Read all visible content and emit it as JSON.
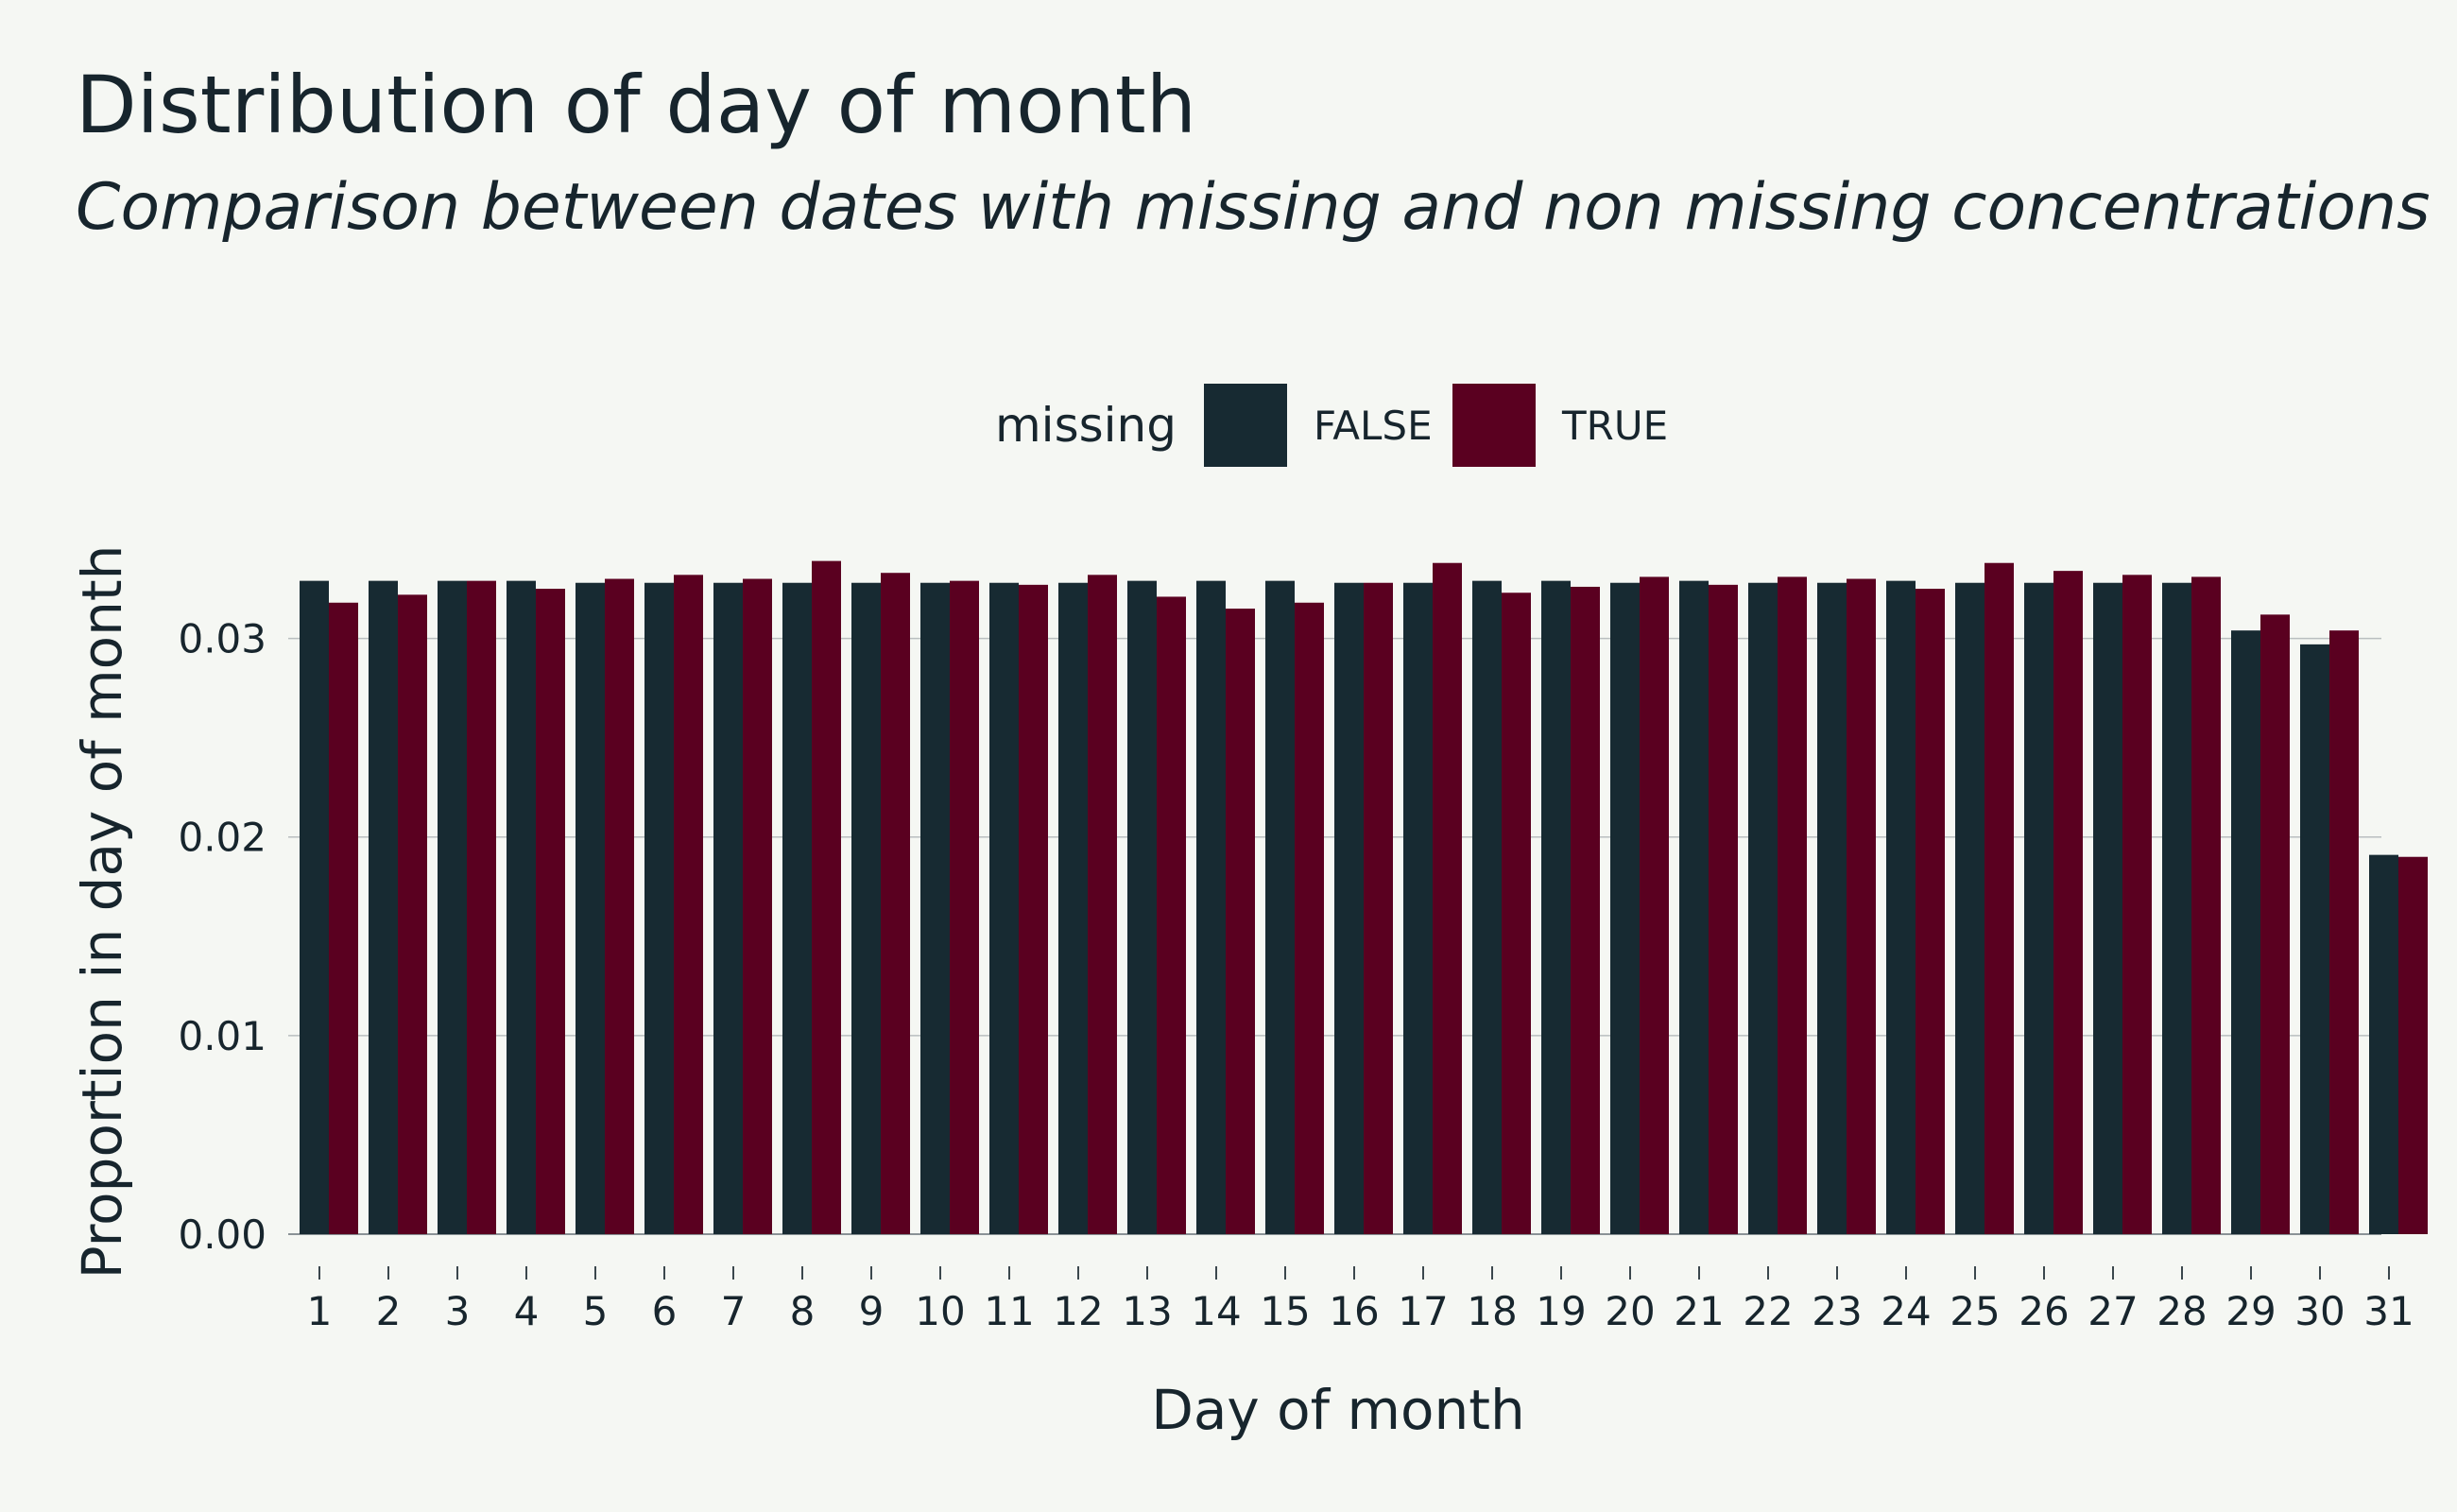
{
  "chart_data": {
    "type": "bar",
    "title": "Distribution of day of month",
    "subtitle": "Comparison between dates with missing and non missing concentrations",
    "xlabel": "Day of month",
    "ylabel": "Proportion in day of month",
    "ylim": [
      0,
      0.0355
    ],
    "yticks": [
      "0.00",
      "0.01",
      "0.02",
      "0.03"
    ],
    "ytick_values": [
      0,
      0.01,
      0.02,
      0.03
    ],
    "grid": "horizontal",
    "legend": {
      "title": "missing",
      "position": "top-center"
    },
    "categories": [
      "1",
      "2",
      "3",
      "4",
      "5",
      "6",
      "7",
      "8",
      "9",
      "10",
      "11",
      "12",
      "13",
      "14",
      "15",
      "16",
      "17",
      "18",
      "19",
      "20",
      "21",
      "22",
      "23",
      "24",
      "25",
      "26",
      "27",
      "28",
      "29",
      "30",
      "31"
    ],
    "series": [
      {
        "name": "FALSE",
        "color": "#172a32",
        "values": [
          0.0329,
          0.0329,
          0.0329,
          0.0329,
          0.0328,
          0.0328,
          0.0328,
          0.0328,
          0.0328,
          0.0328,
          0.0328,
          0.0328,
          0.0329,
          0.0329,
          0.0329,
          0.0328,
          0.0328,
          0.0329,
          0.0329,
          0.0328,
          0.0329,
          0.0328,
          0.0328,
          0.0329,
          0.0328,
          0.0328,
          0.0328,
          0.0328,
          0.0304,
          0.0297,
          0.0191
        ]
      },
      {
        "name": "TRUE",
        "color": "#5a0020",
        "values": [
          0.0318,
          0.0322,
          0.0329,
          0.0325,
          0.033,
          0.0332,
          0.033,
          0.0339,
          0.0333,
          0.0329,
          0.0327,
          0.0332,
          0.0321,
          0.0315,
          0.0318,
          0.0328,
          0.0338,
          0.0323,
          0.0326,
          0.0331,
          0.0327,
          0.0331,
          0.033,
          0.0325,
          0.0338,
          0.0334,
          0.0332,
          0.0331,
          0.0312,
          0.0304,
          0.019
        ]
      }
    ]
  }
}
